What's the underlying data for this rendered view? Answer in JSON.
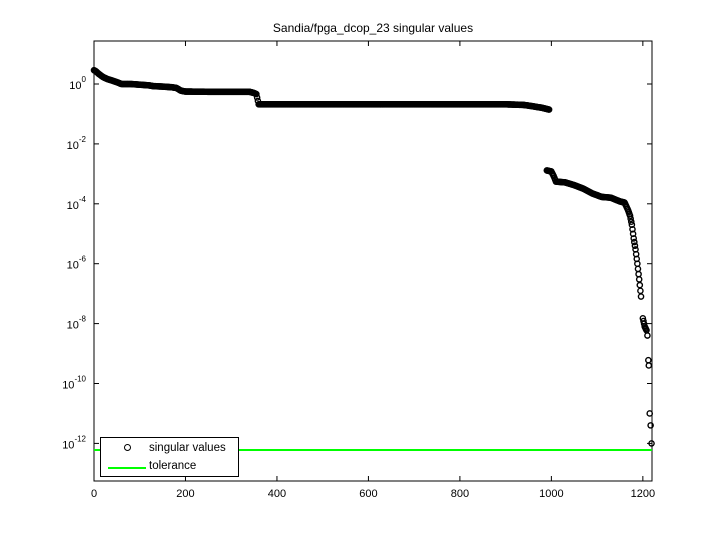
{
  "chart_data": {
    "type": "scatter",
    "title": "Sandia/fpga_dcop_23 singular values",
    "xlabel": "",
    "ylabel": "",
    "xlim": [
      0,
      1220
    ],
    "ylim_log10": [
      -13.2,
      1.45
    ],
    "yscale": "log",
    "x_ticks": [
      0,
      200,
      400,
      600,
      800,
      1000,
      1200
    ],
    "y_ticks": [
      {
        "exp": "0",
        "value": 1
      },
      {
        "exp": "-2",
        "value": 0.01
      },
      {
        "exp": "-4",
        "value": 0.0001
      },
      {
        "exp": "-6",
        "value": 1e-06
      },
      {
        "exp": "-8",
        "value": 1e-08
      },
      {
        "exp": "-10",
        "value": 1e-10
      },
      {
        "exp": "-12",
        "value": 1e-12
      }
    ],
    "grid": false,
    "legend_position": "lower left",
    "series": [
      {
        "name": "singular values",
        "marker": "circle",
        "color": "#000000",
        "points": [
          [
            0,
            2.9
          ],
          [
            5,
            2.6
          ],
          [
            10,
            2.2
          ],
          [
            20,
            1.7
          ],
          [
            30,
            1.45
          ],
          [
            40,
            1.3
          ],
          [
            50,
            1.15
          ],
          [
            60,
            1.0
          ],
          [
            80,
            1.0
          ],
          [
            100,
            0.95
          ],
          [
            120,
            0.9
          ],
          [
            130,
            0.85
          ],
          [
            150,
            0.82
          ],
          [
            170,
            0.78
          ],
          [
            180,
            0.74
          ],
          [
            190,
            0.6
          ],
          [
            200,
            0.56
          ],
          [
            250,
            0.55
          ],
          [
            300,
            0.55
          ],
          [
            340,
            0.55
          ],
          [
            350,
            0.5
          ],
          [
            355,
            0.46
          ],
          [
            360,
            0.21
          ],
          [
            400,
            0.21
          ],
          [
            500,
            0.21
          ],
          [
            600,
            0.21
          ],
          [
            700,
            0.21
          ],
          [
            800,
            0.21
          ],
          [
            900,
            0.21
          ],
          [
            940,
            0.2
          ],
          [
            960,
            0.18
          ],
          [
            980,
            0.16
          ],
          [
            995,
            0.14
          ],
          [
            990,
            0.0013
          ],
          [
            1000,
            0.0012
          ],
          [
            1005,
            0.00085
          ],
          [
            1010,
            0.00055
          ],
          [
            1030,
            0.00052
          ],
          [
            1050,
            0.00042
          ],
          [
            1070,
            0.00032
          ],
          [
            1090,
            0.00022
          ],
          [
            1110,
            0.00017
          ],
          [
            1130,
            0.00016
          ],
          [
            1150,
            0.00012
          ],
          [
            1160,
            0.00011
          ],
          [
            1168,
            6e-05
          ],
          [
            1172,
            4e-05
          ],
          [
            1176,
            2e-05
          ],
          [
            1180,
            7e-06
          ],
          [
            1184,
            3e-06
          ],
          [
            1188,
            1e-06
          ],
          [
            1192,
            3e-07
          ],
          [
            1196,
            8e-08
          ],
          [
            1200,
            1.5e-08
          ],
          [
            1204,
            8e-09
          ],
          [
            1208,
            6e-09
          ],
          [
            1210,
            4e-09
          ],
          [
            1212,
            6e-10
          ],
          [
            1213,
            4e-10
          ],
          [
            1215,
            1e-11
          ],
          [
            1217,
            4e-12
          ],
          [
            1219,
            1e-12
          ]
        ]
      },
      {
        "name": "tolerance",
        "marker": "line",
        "color": "#00ff00",
        "value": 6e-13
      }
    ]
  },
  "legend": {
    "items": [
      {
        "label": "singular values"
      },
      {
        "label": "tolerance"
      }
    ]
  }
}
